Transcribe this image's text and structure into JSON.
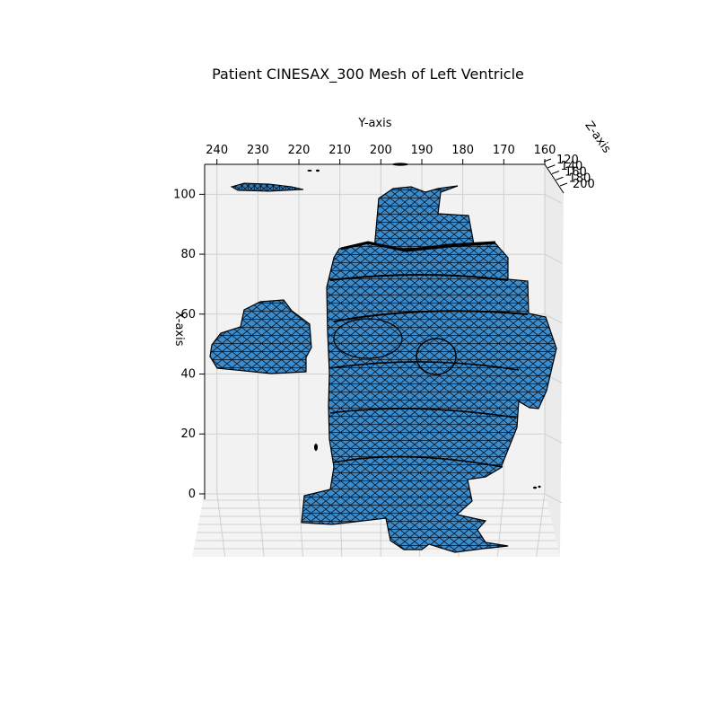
{
  "chart_data": {
    "type": "mesh3d",
    "title": "Patient CINESAX_300 Mesh of Left Ventricle",
    "xlabel": "X-axis",
    "ylabel": "Y-axis",
    "zlabel": "Z-axis",
    "x_ticks": [
      "0",
      "20",
      "40",
      "60",
      "80",
      "100"
    ],
    "y_ticks": [
      "240",
      "230",
      "220",
      "210",
      "200",
      "190",
      "180",
      "170",
      "160"
    ],
    "z_ticks": [
      "120",
      "140",
      "160",
      "180",
      "200"
    ],
    "xlim": [
      -18,
      110
    ],
    "ylim": [
      243,
      160
    ],
    "zlim": [
      120,
      200
    ],
    "grid": true,
    "colors": {
      "face": "#3d8fd0",
      "edge": "#000000",
      "pane": "#f2f2f2",
      "grid": "#cfcfcf"
    }
  }
}
